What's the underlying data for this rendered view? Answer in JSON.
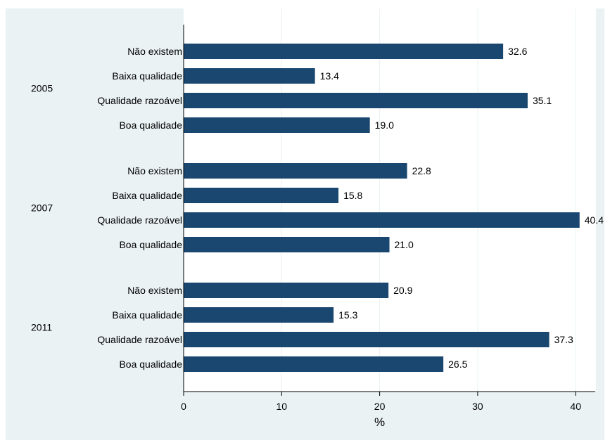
{
  "colors": {
    "outer_background": "#eaf2f3",
    "plot_background": "#ffffff",
    "bar": "#1a476f",
    "gridline": "#eaf2f3",
    "axis": "#000000",
    "text": "#000000"
  },
  "chart_data": {
    "type": "bar",
    "orientation": "horizontal",
    "xlabel": "%",
    "xlim": [
      0,
      42
    ],
    "xticks": [
      0,
      10,
      20,
      30,
      40
    ],
    "grid": true,
    "groups": [
      {
        "label": "2005",
        "bars": [
          {
            "label": "Não existem",
            "value": 32.6,
            "value_label": "32.6"
          },
          {
            "label": "Baixa qualidade",
            "value": 13.4,
            "value_label": "13.4"
          },
          {
            "label": "Qualidade razoável",
            "value": 35.1,
            "value_label": "35.1"
          },
          {
            "label": "Boa qualidade",
            "value": 19.0,
            "value_label": "19.0"
          }
        ]
      },
      {
        "label": "2007",
        "bars": [
          {
            "label": "Não existem",
            "value": 22.8,
            "value_label": "22.8"
          },
          {
            "label": "Baixa qualidade",
            "value": 15.8,
            "value_label": "15.8"
          },
          {
            "label": "Qualidade razoável",
            "value": 40.4,
            "value_label": "40.4"
          },
          {
            "label": "Boa qualidade",
            "value": 21.0,
            "value_label": "21.0"
          }
        ]
      },
      {
        "label": "2011",
        "bars": [
          {
            "label": "Não existem",
            "value": 20.9,
            "value_label": "20.9"
          },
          {
            "label": "Baixa qualidade",
            "value": 15.3,
            "value_label": "15.3"
          },
          {
            "label": "Qualidade razoável",
            "value": 37.3,
            "value_label": "37.3"
          },
          {
            "label": "Boa qualidade",
            "value": 26.5,
            "value_label": "26.5"
          }
        ]
      }
    ]
  }
}
